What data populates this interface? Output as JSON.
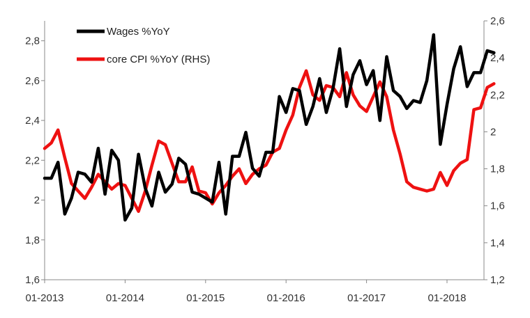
{
  "chart_data": {
    "type": "line",
    "title": "",
    "xlabel": "",
    "ylabel": "",
    "y2label": "",
    "x_ticks": [
      "01-2013",
      "01-2014",
      "01-2015",
      "01-2016",
      "01-2017",
      "01-2018"
    ],
    "ylim": [
      1.6,
      2.9
    ],
    "y_ticks": [
      "1,6",
      "1,8",
      "2",
      "2,2",
      "2,4",
      "2,6",
      "2,8"
    ],
    "y2lim": [
      1.2,
      2.6
    ],
    "y2_ticks": [
      "1,2",
      "1,4",
      "1,6",
      "1,8",
      "2",
      "2,2",
      "2,4",
      "2,6"
    ],
    "grid": false,
    "legend_position": "top-left",
    "series": [
      {
        "name": "Wages %YoY",
        "axis": "left",
        "color": "#000000",
        "start": "01-2013",
        "values": [
          2.11,
          2.11,
          2.19,
          1.93,
          2.01,
          2.14,
          2.13,
          2.09,
          2.26,
          2.03,
          2.25,
          2.2,
          1.9,
          1.96,
          2.23,
          2.06,
          1.97,
          2.14,
          2.04,
          2.08,
          2.21,
          2.18,
          2.04,
          2.03,
          2.01,
          1.99,
          2.19,
          1.93,
          2.22,
          2.22,
          2.34,
          2.16,
          2.12,
          2.24,
          2.24,
          2.52,
          2.44,
          2.56,
          2.55,
          2.38,
          2.47,
          2.61,
          2.44,
          2.56,
          2.76,
          2.47,
          2.63,
          2.7,
          2.58,
          2.65,
          2.4,
          2.72,
          2.55,
          2.52,
          2.46,
          2.5,
          2.49,
          2.6,
          2.83,
          2.28,
          2.48,
          2.66,
          2.77,
          2.57,
          2.64,
          2.64,
          2.75,
          2.74
        ]
      },
      {
        "name": "core CPI %YoY (RHS)",
        "axis": "right",
        "color": "#ee1111",
        "start": "01-2013",
        "values": [
          1.91,
          1.94,
          2.01,
          1.86,
          1.72,
          1.68,
          1.64,
          1.7,
          1.77,
          1.73,
          1.69,
          1.72,
          1.71,
          1.64,
          1.57,
          1.68,
          1.82,
          1.95,
          1.93,
          1.83,
          1.73,
          1.73,
          1.81,
          1.68,
          1.67,
          1.61,
          1.67,
          1.71,
          1.76,
          1.8,
          1.72,
          1.77,
          1.8,
          1.82,
          1.89,
          1.91,
          2.01,
          2.09,
          2.24,
          2.33,
          2.2,
          2.17,
          2.25,
          2.24,
          2.19,
          2.32,
          2.2,
          2.14,
          2.11,
          2.19,
          2.27,
          2.19,
          2.01,
          1.88,
          1.73,
          1.7,
          1.69,
          1.68,
          1.69,
          1.78,
          1.71,
          1.79,
          1.83,
          1.85,
          2.12,
          2.13,
          2.24,
          2.26
        ]
      }
    ]
  }
}
